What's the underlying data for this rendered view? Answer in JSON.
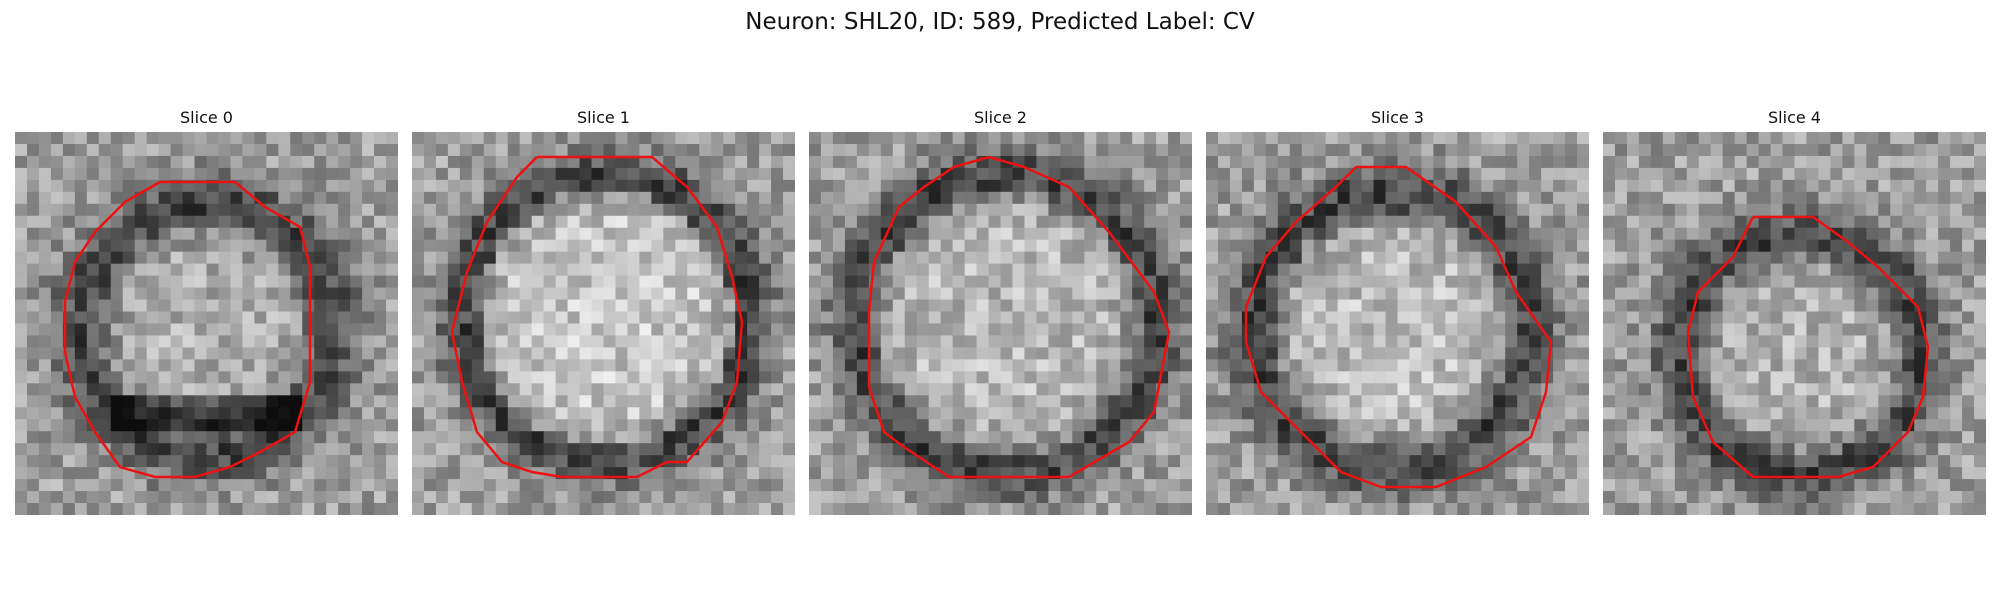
{
  "title": "Neuron: SHL20, ID: 589, Predicted Label: CV",
  "colors": {
    "contour": "#ee1111",
    "background": "#ffffff"
  },
  "panels": [
    {
      "label": "Slice 0"
    },
    {
      "label": "Slice 1"
    },
    {
      "label": "Slice 2"
    },
    {
      "label": "Slice 3"
    },
    {
      "label": "Slice 4"
    }
  ]
}
